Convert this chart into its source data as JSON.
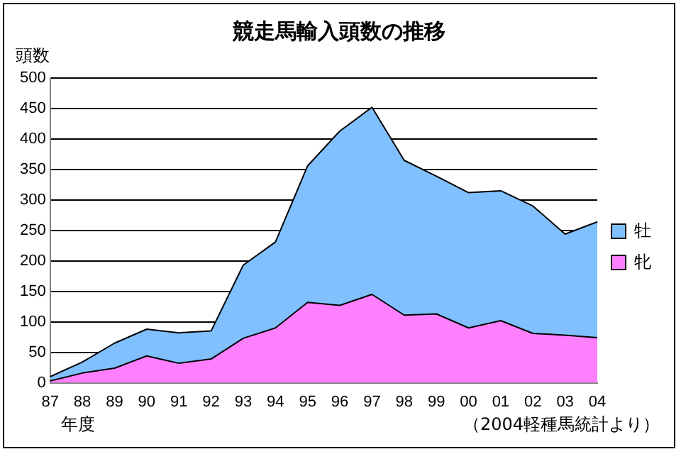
{
  "chart_data": {
    "type": "area",
    "stacked": true,
    "title": "競走馬輸入頭数の推移",
    "ylabel": "頭数",
    "xlabel": "年度",
    "annotations": [
      "（2004軽種馬統計より）"
    ],
    "categories": [
      "87",
      "88",
      "89",
      "90",
      "91",
      "92",
      "93",
      "94",
      "95",
      "96",
      "97",
      "98",
      "99",
      "00",
      "01",
      "02",
      "03",
      "04"
    ],
    "series": [
      {
        "name": "牝",
        "color": "#ff80ff",
        "values": [
          3,
          16,
          24,
          44,
          32,
          39,
          73,
          90,
          132,
          127,
          145,
          111,
          113,
          90,
          102,
          81,
          78,
          74
        ]
      },
      {
        "name": "牡",
        "color": "#80c0ff",
        "values": [
          7,
          18,
          41,
          44,
          50,
          46,
          120,
          141,
          224,
          286,
          307,
          254,
          226,
          222,
          213,
          209,
          166,
          190
        ]
      }
    ],
    "ylim": [
      0,
      500
    ],
    "yticks": [
      0,
      50,
      100,
      150,
      200,
      250,
      300,
      350,
      400,
      450,
      500
    ],
    "grid": "y",
    "legend": "right"
  }
}
